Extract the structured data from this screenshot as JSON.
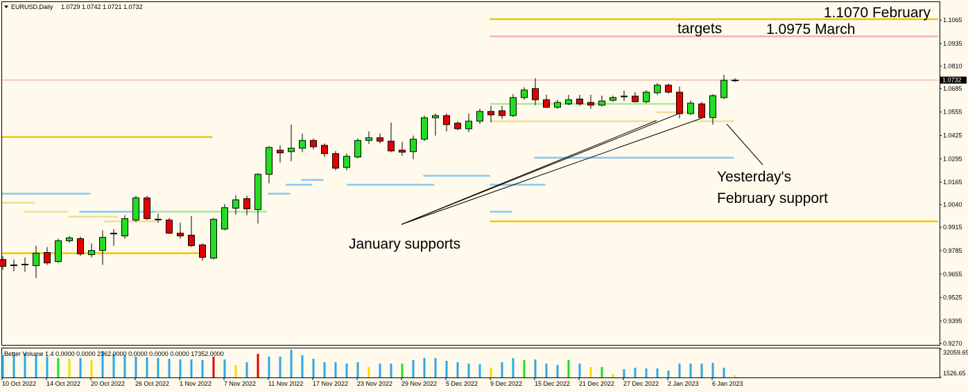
{
  "chart_data": {
    "type": "candlestick",
    "symbol": "EURUSD,Daily",
    "up_color": "#22dd22",
    "down_color": "#e00000",
    "categories": [
      "10 Oct 2022",
      null,
      null,
      null,
      "14 Oct 2022",
      null,
      null,
      null,
      "20 Oct 2022",
      null,
      null,
      null,
      "26 Oct 2022",
      null,
      null,
      null,
      "1 Nov 2022",
      null,
      null,
      null,
      "7 Nov 2022",
      null,
      null,
      null,
      "11 Nov 2022",
      null,
      null,
      null,
      "17 Nov 2022",
      null,
      null,
      null,
      "23 Nov 2022",
      null,
      null,
      null,
      "29 Nov 2022",
      null,
      null,
      null,
      "5 Dec 2022",
      null,
      null,
      null,
      "9 Dec 2022",
      null,
      null,
      null,
      "15 Dec 2022",
      null,
      null,
      null,
      "21 Dec 2022",
      null,
      null,
      null,
      "27 Dec 2022",
      null,
      null,
      null,
      "2 Jan 2023",
      null,
      null,
      null,
      "6 Jan 2023",
      null,
      null
    ],
    "open": [
      0.9736,
      0.9706,
      0.9709,
      0.9702,
      0.9775,
      0.9725,
      0.984,
      0.9852,
      0.9763,
      0.9786,
      0.9879,
      0.9867,
      0.9955,
      1.0078,
      0.996,
      0.9955,
      0.9882,
      0.9871,
      0.9817,
      0.9744,
      0.9905,
      1.0021,
      1.0074,
      1.0013,
      1.0209,
      1.0343,
      1.0335,
      1.0354,
      1.0397,
      1.037,
      1.0324,
      1.0247,
      1.0305,
      1.0397,
      1.0412,
      1.0393,
      1.0343,
      1.0335,
      1.0404,
      1.0523,
      1.0535,
      1.0493,
      1.0462,
      1.0504,
      1.0558,
      1.0562,
      1.0535,
      1.0635,
      1.0685,
      1.0623,
      1.0581,
      1.06,
      1.0627,
      1.0608,
      1.0593,
      1.062,
      1.0642,
      1.0643,
      1.0612,
      1.0662,
      1.0704,
      1.0665,
      1.0546,
      1.06,
      1.0524,
      1.0635,
      1.0729
    ],
    "high": [
      0.9755,
      0.9736,
      0.9748,
      0.9813,
      0.9805,
      0.9852,
      0.9867,
      0.9863,
      0.9825,
      0.9898,
      0.9905,
      0.9982,
      1.009,
      1.009,
      0.999,
      0.9967,
      0.994,
      0.9978,
      0.9825,
      0.9967,
      1.0044,
      1.0093,
      1.009,
      1.0216,
      1.0366,
      1.037,
      1.0485,
      1.0435,
      1.0408,
      1.0381,
      1.0339,
      1.0324,
      1.0408,
      1.0447,
      1.0435,
      1.0497,
      1.0389,
      1.0424,
      1.0535,
      1.0547,
      1.0547,
      1.0504,
      1.0547,
      1.0573,
      1.0589,
      1.0589,
      1.0654,
      1.0692,
      1.0742,
      1.065,
      1.0623,
      1.065,
      1.065,
      1.065,
      1.0646,
      1.0646,
      1.0673,
      1.0665,
      1.0677,
      1.0716,
      1.0712,
      1.0696,
      1.0619,
      1.0612,
      1.0654,
      1.0762,
      1.0742
    ],
    "low": [
      0.9679,
      0.9671,
      0.9667,
      0.9633,
      0.9706,
      0.9717,
      0.9829,
      0.9756,
      0.9748,
      0.9706,
      0.9813,
      0.9852,
      0.9944,
      0.9955,
      0.994,
      0.9878,
      0.9852,
      0.9806,
      0.9729,
      0.9736,
      0.9898,
      0.9986,
      0.9982,
      0.9936,
      1.0159,
      1.0274,
      1.0282,
      1.0332,
      1.0347,
      1.0305,
      1.0232,
      1.0232,
      1.0297,
      1.0378,
      1.0381,
      1.0332,
      1.0312,
      1.0293,
      1.0393,
      1.0424,
      1.0447,
      1.0454,
      1.0443,
      1.0489,
      1.0497,
      1.0516,
      1.0527,
      1.0623,
      1.0593,
      1.0577,
      1.0573,
      1.0593,
      1.0589,
      1.0573,
      1.0585,
      1.0612,
      1.0616,
      1.0608,
      1.0604,
      1.065,
      1.0658,
      1.052,
      1.0539,
      1.0516,
      1.0485,
      1.0627,
      1.0721
    ],
    "close": [
      0.9698,
      0.9702,
      0.971,
      0.9771,
      0.9717,
      0.984,
      0.9856,
      0.9767,
      0.9786,
      0.9859,
      0.9882,
      0.9963,
      1.0078,
      0.9963,
      0.9959,
      0.9882,
      0.9867,
      0.9813,
      0.9748,
      0.9959,
      1.0024,
      1.0067,
      1.0017,
      1.0209,
      1.0358,
      1.0328,
      1.0354,
      1.0397,
      1.0362,
      1.0324,
      1.0243,
      1.0309,
      1.0397,
      1.0412,
      1.0393,
      1.0339,
      1.0332,
      1.0404,
      1.0523,
      1.0535,
      1.0485,
      1.0462,
      1.0504,
      1.0558,
      1.0539,
      1.0535,
      1.0635,
      1.0677,
      1.0623,
      1.0581,
      1.0608,
      1.0623,
      1.06,
      1.0593,
      1.0616,
      1.0635,
      1.0643,
      1.0612,
      1.0665,
      1.0704,
      1.0665,
      1.0546,
      1.0604,
      1.0524,
      1.0646,
      1.0731,
      1.0732
    ],
    "ylim": [
      0.9262,
      1.1169
    ],
    "yticks": [
      {
        "value": 1.1065,
        "label": "1.1065"
      },
      {
        "value": 1.0935,
        "label": "1.0935"
      },
      {
        "value": 1.081,
        "label": "1.0810"
      },
      {
        "value": 1.0685,
        "label": "1.0685"
      },
      {
        "value": 1.0555,
        "label": "1.0555"
      },
      {
        "value": 1.0425,
        "label": "1.0425"
      },
      {
        "value": 1.0295,
        "label": "1.0295"
      },
      {
        "value": 1.0165,
        "label": "1.0165"
      },
      {
        "value": 1.004,
        "label": "1.0040"
      },
      {
        "value": 0.9915,
        "label": "0.9915"
      },
      {
        "value": 0.9785,
        "label": "0.9785"
      },
      {
        "value": 0.9655,
        "label": "0.9655"
      },
      {
        "value": 0.9525,
        "label": "0.9525"
      },
      {
        "value": 0.9395,
        "label": "0.9395"
      },
      {
        "value": 0.927,
        "label": "0.9270"
      }
    ],
    "levels": [
      {
        "value": 1.107,
        "from": 43.9,
        "to": 84.3,
        "color": "#f2c500"
      },
      {
        "value": 1.0975,
        "from": 43.9,
        "to": 84.3,
        "color": "#f6b0b0"
      },
      {
        "value": 1.0416,
        "from": -0.2,
        "to": 18.9,
        "color": "#f2c500"
      },
      {
        "value": 1.0101,
        "from": -0.2,
        "to": 7.9,
        "color": "#87c8f0"
      },
      {
        "value": 1.0051,
        "from": -0.2,
        "to": 2.9,
        "color": "#eedd99"
      },
      {
        "value": 1.0001,
        "from": 1.9,
        "to": 5.9,
        "color": "#eedd99"
      },
      {
        "value": 1.0001,
        "from": 6.9,
        "to": 13.8,
        "color": "#87c8f0"
      },
      {
        "value": 1.0001,
        "from": 13.8,
        "to": 23.8,
        "color": "#a8e8a0"
      },
      {
        "value": 0.9974,
        "from": 5.9,
        "to": 10.4,
        "color": "#eedd99"
      },
      {
        "value": 0.9948,
        "from": 9.1,
        "to": 14.1,
        "color": "#eedd99"
      },
      {
        "value": 0.9771,
        "from": -0.2,
        "to": 17.9,
        "color": "#f2c500"
      },
      {
        "value": 1.0101,
        "from": 23.9,
        "to": 25.9,
        "color": "#87c8f0"
      },
      {
        "value": 1.0151,
        "from": 25.5,
        "to": 27.9,
        "color": "#87c8f0"
      },
      {
        "value": 1.0178,
        "from": 26.9,
        "to": 28.9,
        "color": "#87c8f0"
      },
      {
        "value": 1.0151,
        "from": 31,
        "to": 38.9,
        "color": "#87c8f0"
      },
      {
        "value": 1.0201,
        "from": 37.9,
        "to": 43.9,
        "color": "#87c8f0"
      },
      {
        "value": 1.0151,
        "from": 43.9,
        "to": 48.9,
        "color": "#87c8f0"
      },
      {
        "value": 1.0001,
        "from": 43.9,
        "to": 45.9,
        "color": "#87c8f0"
      },
      {
        "value": 1.0301,
        "from": 47.9,
        "to": 65.9,
        "color": "#87c8f0"
      },
      {
        "value": 0.9948,
        "from": 43.9,
        "to": 84.3,
        "color": "#f2c500"
      },
      {
        "value": 1.06,
        "from": 43.9,
        "to": 61,
        "color": "#a8e8a0"
      },
      {
        "value": 1.0504,
        "from": 43.9,
        "to": 58.9,
        "color": "#eedd99"
      },
      {
        "value": 1.0554,
        "from": 58.9,
        "to": 62.3,
        "color": "#eedd99"
      },
      {
        "value": 1.0504,
        "from": 62.3,
        "to": 65.9,
        "color": "#eedd99"
      }
    ],
    "annotations": [
      "1.1070 February",
      "targets",
      "1.0975 March",
      "January supports",
      "Yesterday's",
      "February support"
    ],
    "volume": {
      "title": "Better Volume 1.4 0.0000 0.0000 2362.0000 0.0000 0.0000 0.0000 17352.0000",
      "ylim": [
        1526.65,
        32059.65
      ],
      "yticks": [
        32059.65,
        1526.65
      ],
      "values": [
        26100,
        26100,
        27600,
        26100,
        23900,
        22400,
        21600,
        22400,
        20200,
        29800,
        26900,
        25400,
        23900,
        23100,
        22400,
        21600,
        20900,
        20900,
        20200,
        23900,
        20900,
        14900,
        17900,
        26900,
        23900,
        23900,
        31300,
        25400,
        21600,
        17900,
        17900,
        16400,
        17900,
        12700,
        16400,
        16400,
        16400,
        20200,
        22400,
        22400,
        19400,
        17900,
        16400,
        15700,
        12000,
        17900,
        22400,
        20200,
        20900,
        16400,
        14900,
        20200,
        16400,
        12700,
        12700,
        5300,
        10500,
        12000,
        11200,
        11200,
        9000,
        16400,
        16400,
        16400,
        17200,
        12000,
        3800
      ],
      "colors": [
        "#2aa8e8",
        "#2aa8e8",
        "#2aa8e8",
        "#2aa8e8",
        "#2aa8e8",
        "#22dd22",
        "#f0e000",
        "#2aa8e8",
        "#f0e000",
        "#2aa8e8",
        "#2aa8e8",
        "#2aa8e8",
        "#2aa8e8",
        "#2aa8e8",
        "#2aa8e8",
        "#2aa8e8",
        "#2aa8e8",
        "#2aa8e8",
        "#2aa8e8",
        "#e00000",
        "#2aa8e8",
        "#f0e000",
        "#2aa8e8",
        "#e00000",
        "#2aa8e8",
        "#2aa8e8",
        "#2aa8e8",
        "#2aa8e8",
        "#2aa8e8",
        "#2aa8e8",
        "#2aa8e8",
        "#2aa8e8",
        "#2aa8e8",
        "#f0e000",
        "#2aa8e8",
        "#2aa8e8",
        "#22dd22",
        "#2aa8e8",
        "#2aa8e8",
        "#2aa8e8",
        "#2aa8e8",
        "#2aa8e8",
        "#2aa8e8",
        "#2aa8e8",
        "#f0e000",
        "#2aa8e8",
        "#2aa8e8",
        "#22dd22",
        "#2aa8e8",
        "#2aa8e8",
        "#2aa8e8",
        "#22dd22",
        "#2aa8e8",
        "#f0e000",
        "#22dd22",
        "#f0e000",
        "#2aa8e8",
        "#2aa8e8",
        "#2aa8e8",
        "#2aa8e8",
        "#2aa8e8",
        "#2aa8e8",
        "#2aa8e8",
        "#2aa8e8",
        "#2aa8e8",
        "#2aa8e8",
        "#f0e000"
      ]
    }
  }
}
